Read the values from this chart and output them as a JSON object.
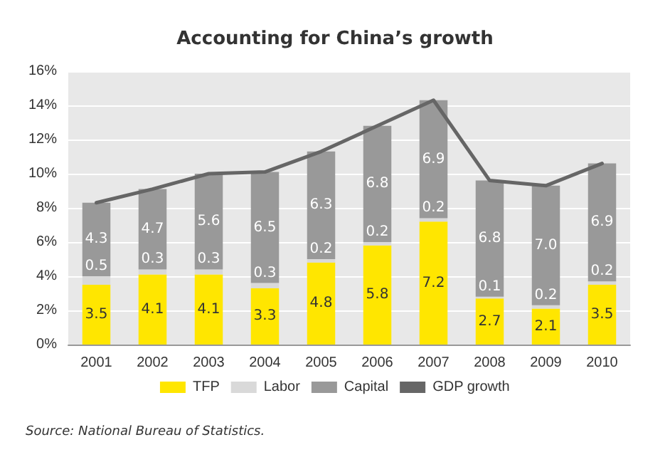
{
  "chart_data": {
    "type": "bar",
    "title": "Accounting for China’s growth",
    "categories": [
      "2001",
      "2002",
      "2003",
      "2004",
      "2005",
      "2006",
      "2007",
      "2008",
      "2009",
      "2010"
    ],
    "stacked": true,
    "series": [
      {
        "name": "TFP",
        "color": "#ffe600",
        "values": [
          3.5,
          4.1,
          4.1,
          3.3,
          4.8,
          5.8,
          7.2,
          2.7,
          2.1,
          3.5
        ],
        "value_labels": [
          "3.5",
          "4.1",
          "4.1",
          "3.3",
          "4.8",
          "5.8",
          "7.2",
          "2.7",
          "2.1",
          "3.5"
        ]
      },
      {
        "name": "Labor",
        "color": "#d9d9d9",
        "values": [
          0.5,
          0.3,
          0.3,
          0.3,
          0.2,
          0.2,
          0.2,
          0.1,
          0.2,
          0.2
        ],
        "value_labels": [
          "0.5",
          "0.3",
          "0.3",
          "0.3",
          "0.2",
          "0.2",
          "0.2",
          "0.1",
          "0.2",
          "0.2"
        ]
      },
      {
        "name": "Capital",
        "color": "#999999",
        "values": [
          4.3,
          4.7,
          5.6,
          6.5,
          6.3,
          6.8,
          6.9,
          6.8,
          7.0,
          6.9
        ],
        "value_labels": [
          "4.3",
          "4.7",
          "5.6",
          "6.5",
          "6.3",
          "6.8",
          "6.9",
          "6.8",
          "7.0",
          "6.9"
        ]
      },
      {
        "name": "GDP growth",
        "type": "line",
        "color": "#666666",
        "values": [
          8.3,
          9.1,
          10.0,
          10.1,
          11.3,
          12.8,
          14.3,
          9.6,
          9.3,
          10.6
        ]
      }
    ],
    "ylim": [
      0,
      16
    ],
    "yticks": [
      {
        "value": 0,
        "label": "0%"
      },
      {
        "value": 2,
        "label": "2%"
      },
      {
        "value": 4,
        "label": "4%"
      },
      {
        "value": 6,
        "label": "6%"
      },
      {
        "value": 8,
        "label": "8%"
      },
      {
        "value": 10,
        "label": "10%"
      },
      {
        "value": 12,
        "label": "12%"
      },
      {
        "value": 14,
        "label": "14%"
      },
      {
        "value": 16,
        "label": "16%"
      }
    ],
    "grid": "y",
    "legend": "bottom",
    "marker": "none",
    "annotations": [
      "Source: National Bureau of Statistics."
    ]
  }
}
